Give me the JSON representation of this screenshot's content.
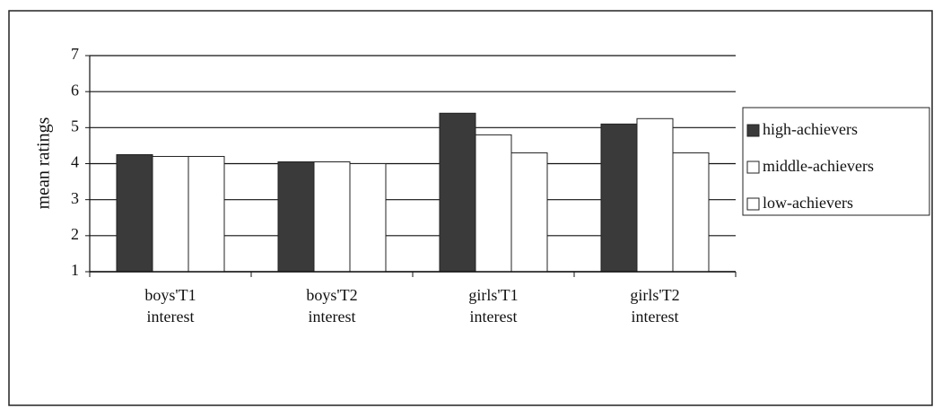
{
  "chart_data": {
    "type": "bar",
    "y_label": "mean ratings",
    "categories": [
      "boys'T1 interest",
      "boys'T2 interest",
      "girls'T1 interest",
      "girls'T2 interest"
    ],
    "series": [
      {
        "name": "high-achievers",
        "color": "#3a3a3a",
        "values": [
          4.25,
          4.05,
          5.4,
          5.1
        ]
      },
      {
        "name": "middle-achievers",
        "color": "#ffffff",
        "values": [
          4.2,
          4.05,
          4.8,
          5.25
        ]
      },
      {
        "name": "low-achievers",
        "color": "#ffffff",
        "values": [
          4.2,
          4.0,
          4.3,
          4.3
        ]
      }
    ],
    "ylim": [
      1,
      7
    ],
    "yticks": [
      1,
      2,
      3,
      4,
      5,
      6,
      7
    ],
    "grid": true,
    "legend": "right"
  }
}
